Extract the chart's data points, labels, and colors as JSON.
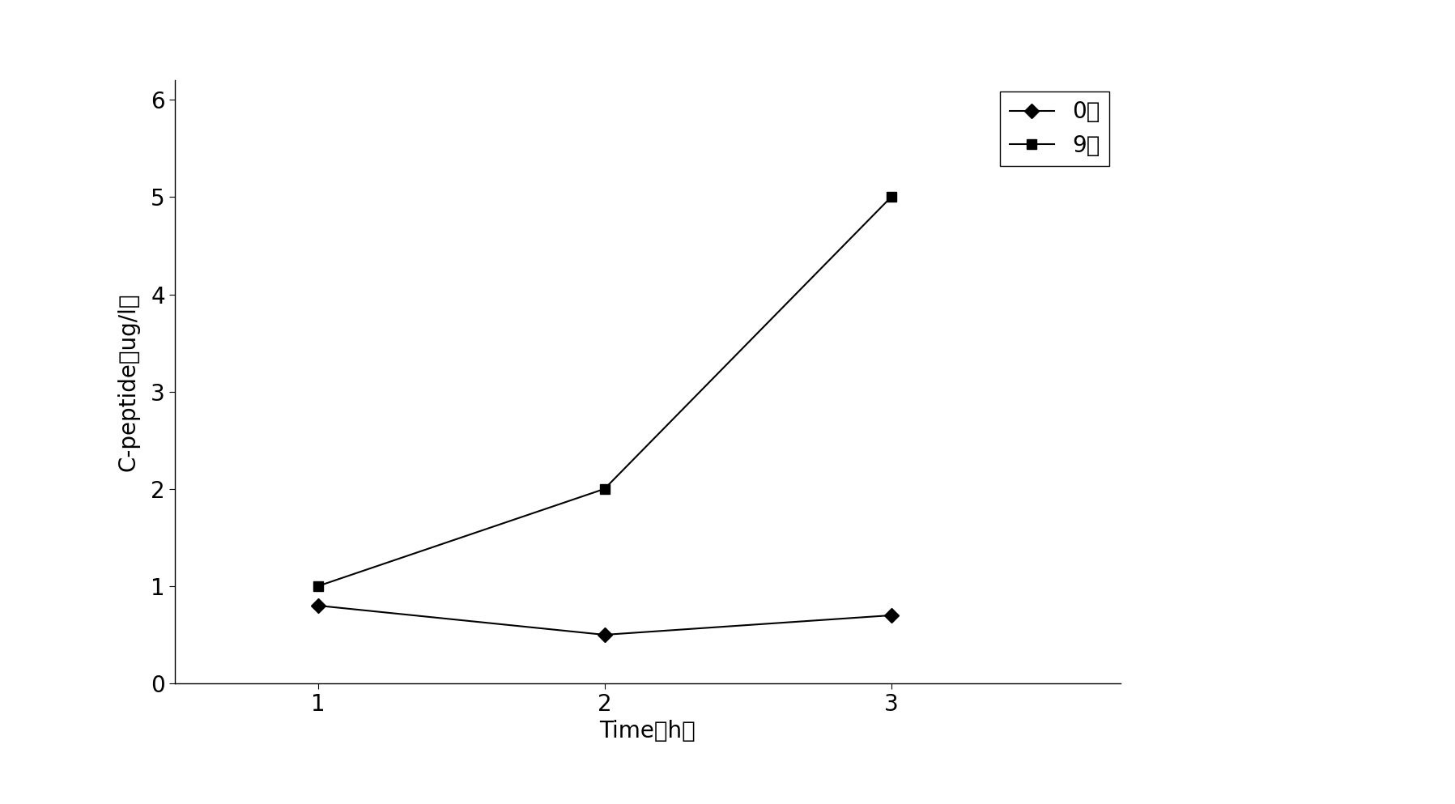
{
  "x": [
    1,
    2,
    3
  ],
  "series": [
    {
      "label": "0月",
      "y": [
        0.8,
        0.5,
        0.7
      ],
      "marker": "D",
      "markersize": 9,
      "color": "#000000"
    },
    {
      "label": "9月",
      "y": [
        1.0,
        2.0,
        5.0
      ],
      "marker": "s",
      "markersize": 9,
      "color": "#000000"
    }
  ],
  "xlabel": "Time（h）",
  "ylabel": "C-peptide（ug/l）",
  "xlim": [
    0.5,
    3.8
  ],
  "ylim": [
    0,
    6.2
  ],
  "yticks": [
    0,
    1,
    2,
    3,
    4,
    5,
    6
  ],
  "xticks": [
    1,
    2,
    3
  ],
  "background_color": "#ffffff",
  "linewidth": 1.5,
  "axis_fontsize": 20,
  "tick_fontsize": 20,
  "legend_fontsize": 20
}
